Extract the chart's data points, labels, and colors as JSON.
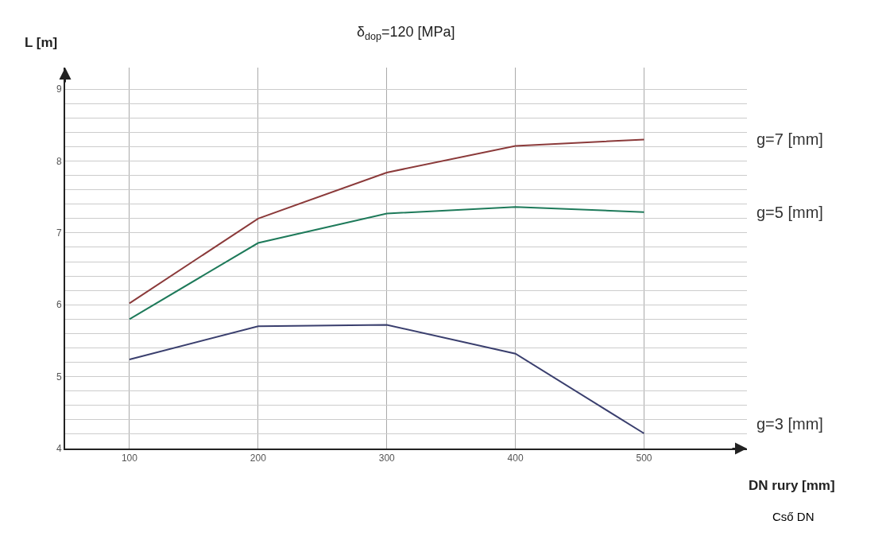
{
  "chart_data": {
    "type": "line",
    "title": "δ$_{dop}$=120 [MPa]",
    "xlabel": "DN rury [mm]",
    "ylabel": "L [m]",
    "annotations": [
      "Cső DN"
    ],
    "x": [
      100,
      200,
      300,
      400,
      500
    ],
    "series": [
      {
        "name": "g=7 [mm]",
        "color": "#8b3a3a",
        "values": [
          6.02,
          7.2,
          7.84,
          8.21,
          8.3
        ]
      },
      {
        "name": "g=5 [mm]",
        "color": "#1e7a5a",
        "values": [
          5.8,
          6.86,
          7.27,
          7.36,
          7.29
        ]
      },
      {
        "name": "g=3 [mm]",
        "color": "#3a3f6e",
        "values": [
          5.24,
          5.7,
          5.72,
          5.32,
          4.21
        ]
      }
    ],
    "xlim": [
      50,
      580
    ],
    "xticks": [
      100,
      200,
      300,
      400,
      500
    ],
    "ylim": [
      4,
      9.3
    ],
    "yticks": [
      4,
      {
        "value": 4.2,
        "label": null
      },
      {
        "value": 4.4,
        "label": null
      },
      {
        "value": 4.6,
        "label": null
      },
      {
        "value": 4.8,
        "label": null
      },
      5,
      {
        "value": 5.2,
        "label": null
      },
      {
        "value": 5.4,
        "label": null
      },
      {
        "value": 5.6,
        "label": null
      },
      {
        "value": 5.8,
        "label": null
      },
      6,
      {
        "value": 6.2,
        "label": null
      },
      {
        "value": 6.4,
        "label": null
      },
      {
        "value": 6.6,
        "label": null
      },
      {
        "value": 6.8,
        "label": null
      },
      7,
      {
        "value": 7.2,
        "label": null
      },
      {
        "value": 7.4,
        "label": null
      },
      {
        "value": 7.6,
        "label": null
      },
      {
        "value": 7.8,
        "label": null
      },
      8,
      {
        "value": 8.2,
        "label": null
      },
      {
        "value": 8.4,
        "label": null
      },
      {
        "value": 8.6,
        "label": null
      },
      {
        "value": 8.8,
        "label": null
      },
      9
    ],
    "grid": true,
    "marker": "none",
    "line_style": "solid",
    "legend": false
  }
}
